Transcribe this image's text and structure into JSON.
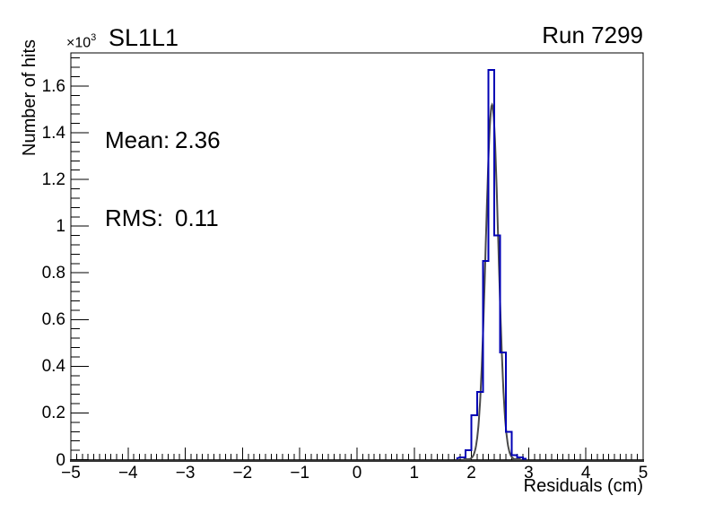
{
  "chart_data": {
    "type": "histogram",
    "title": "SL1L1",
    "corner_label": "Run 7299",
    "y_exponent": {
      "base": "×10",
      "power": "3"
    },
    "stats": {
      "mean_label": "Mean:",
      "mean_value": "2.36",
      "rms_label": "RMS:",
      "rms_value": "0.11"
    },
    "xlabel": "Residuals (cm)",
    "ylabel": "Number of hits",
    "xlim": [
      -5,
      5
    ],
    "ylim": [
      0,
      1744
    ],
    "grid": false,
    "legend": null,
    "x_ticks": [
      {
        "v": -5,
        "label": "−5"
      },
      {
        "v": -4,
        "label": "−4"
      },
      {
        "v": -3,
        "label": "−3"
      },
      {
        "v": -2,
        "label": "−2"
      },
      {
        "v": -1,
        "label": "−1"
      },
      {
        "v": 0,
        "label": "0"
      },
      {
        "v": 1,
        "label": "1"
      },
      {
        "v": 2,
        "label": "2"
      },
      {
        "v": 3,
        "label": "3"
      },
      {
        "v": 4,
        "label": "4"
      },
      {
        "v": 5,
        "label": "5"
      }
    ],
    "x_minor_step": 0.1,
    "y_ticks": [
      {
        "v": 0,
        "label": "0"
      },
      {
        "v": 200,
        "label": "0.2"
      },
      {
        "v": 400,
        "label": "0.4"
      },
      {
        "v": 600,
        "label": "0.6"
      },
      {
        "v": 800,
        "label": "0.8"
      },
      {
        "v": 1000,
        "label": "1"
      },
      {
        "v": 1200,
        "label": "1.2"
      },
      {
        "v": 1400,
        "label": "1.4"
      },
      {
        "v": 1600,
        "label": "1.6"
      }
    ],
    "y_minor_step": 40,
    "bins": {
      "start": 1.8,
      "width": 0.1,
      "counts": [
        10,
        40,
        190,
        290,
        850,
        1670,
        960,
        460,
        120,
        20,
        10
      ]
    },
    "fit": {
      "shape": "gaussian",
      "mean": 2.36,
      "sigma": 0.11,
      "amplitude": 1520,
      "range": [
        1.86,
        2.86
      ]
    },
    "colors": {
      "histogram": "#0000b4",
      "fit": "#4a4a4a",
      "axis": "#333333",
      "frame": "#000000",
      "text": "#000000"
    }
  }
}
